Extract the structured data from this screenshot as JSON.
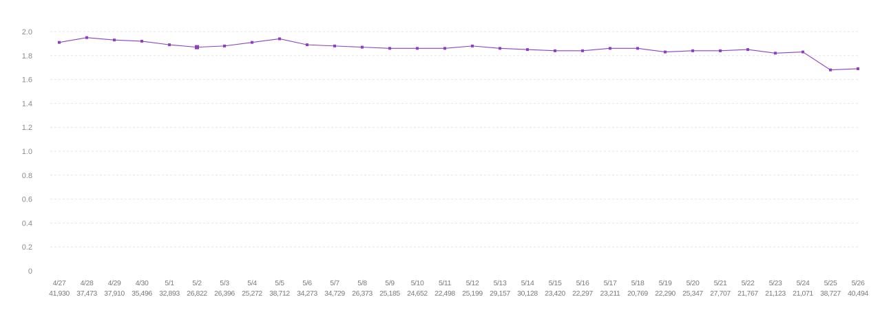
{
  "chart_data": {
    "type": "line",
    "title": "",
    "xlabel": "",
    "ylabel": "",
    "ylim": [
      0,
      2.0
    ],
    "y_ticks": [
      "0",
      "0.2",
      "0.4",
      "0.6",
      "0.8",
      "1.0",
      "1.2",
      "1.4",
      "1.6",
      "1.8",
      "2.0"
    ],
    "grid": true,
    "categories": [
      "4/27",
      "4/28",
      "4/29",
      "4/30",
      "5/1",
      "5/2",
      "5/3",
      "5/4",
      "5/5",
      "5/6",
      "5/7",
      "5/8",
      "5/9",
      "5/10",
      "5/11",
      "5/12",
      "5/13",
      "5/14",
      "5/15",
      "5/16",
      "5/17",
      "5/18",
      "5/19",
      "5/20",
      "5/21",
      "5/22",
      "5/23",
      "5/24",
      "5/25",
      "5/26"
    ],
    "sub_labels": [
      "41,930",
      "37,473",
      "37,910",
      "35,496",
      "32,893",
      "26,822",
      "26,396",
      "25,272",
      "38,712",
      "34,273",
      "34,729",
      "26,373",
      "25,185",
      "24,652",
      "22,498",
      "25,199",
      "29,157",
      "30,128",
      "23,420",
      "22,297",
      "23,211",
      "20,769",
      "22,290",
      "25,347",
      "27,707",
      "21,767",
      "21,123",
      "21,071",
      "38,727",
      "40,494"
    ],
    "series": [
      {
        "color": "#8e3fc0",
        "values": [
          1.91,
          1.95,
          1.93,
          1.92,
          1.89,
          1.87,
          1.88,
          1.91,
          1.94,
          1.89,
          1.88,
          1.87,
          1.86,
          1.86,
          1.86,
          1.88,
          1.86,
          1.85,
          1.84,
          1.84,
          1.86,
          1.86,
          1.83,
          1.84,
          1.84,
          1.85,
          1.82,
          1.83,
          1.68,
          1.69
        ],
        "highlighted_index": 5
      }
    ]
  }
}
